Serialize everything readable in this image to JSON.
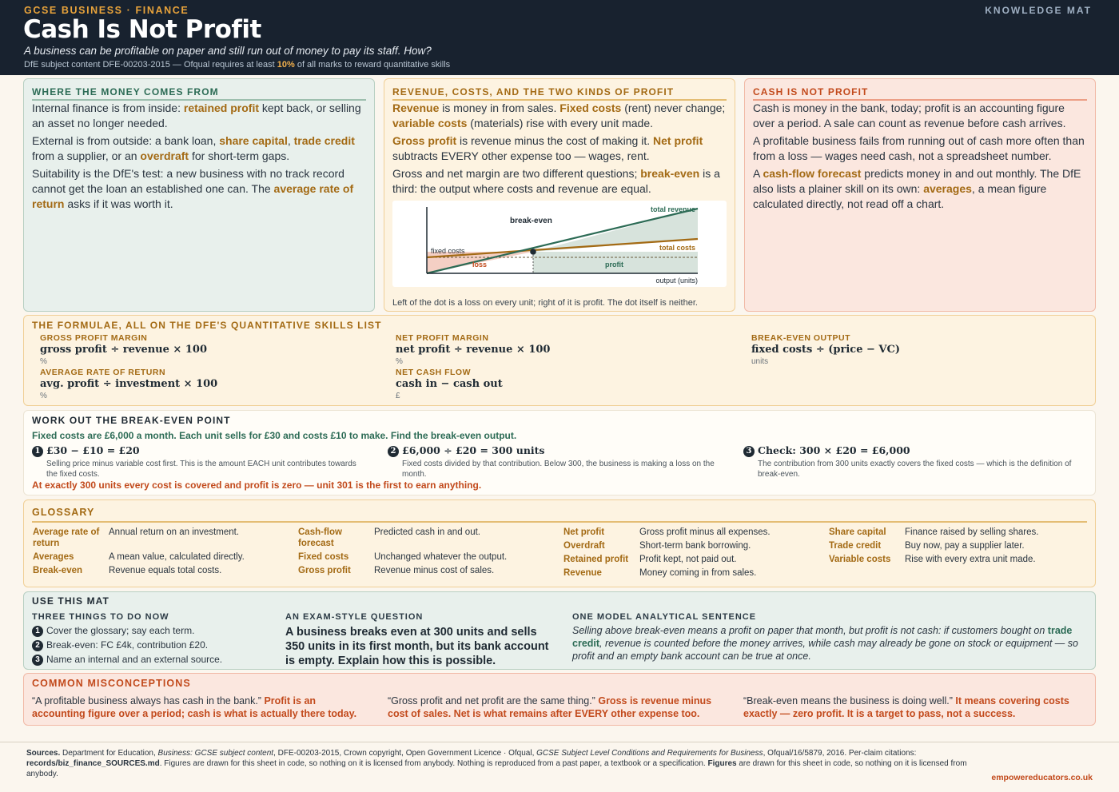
{
  "header": {
    "eyebrow": "GCSE BUSINESS · FINANCE",
    "tag": "KNOWLEDGE MAT",
    "title": "Cash Is Not Profit",
    "subtitle": "A business can be profitable on paper and still run out of money to pay its staff. How?",
    "dfe_pre": "DfE subject content DFE-00203-2015 — Ofqual requires at least ",
    "dfe_pct": "10%",
    "dfe_post": " of all marks to reward quantitative skills"
  },
  "money": {
    "heading": "WHERE THE MONEY COMES FROM",
    "p1_a": "Internal finance is from inside: ",
    "p1_k1": "retained profit",
    "p1_b": " kept back, or selling an asset no longer needed.",
    "p2_a": "External is from outside: a bank loan, ",
    "p2_k1": "share capital",
    "p2_b": ", ",
    "p2_k2": "trade credit",
    "p2_c": " from a supplier, or an ",
    "p2_k3": "overdraft",
    "p2_d": " for short-term gaps.",
    "p3_a": "Suitability is the DfE's test: a new business with no track record cannot get the loan an established one can. The ",
    "p3_k1": "average rate of return",
    "p3_b": " asks if it was worth it."
  },
  "revenue": {
    "heading": "REVENUE, COSTS, AND THE TWO KINDS OF PROFIT",
    "p1_k1": "Revenue",
    "p1_a": " is money in from sales. ",
    "p1_k2": "Fixed costs",
    "p1_b": " (rent) never change; ",
    "p1_k3": "variable costs",
    "p1_c": " (materials) rise with every unit made.",
    "p2_k1": "Gross profit",
    "p2_a": " is revenue minus the cost of making it. ",
    "p2_k2": "Net profit",
    "p2_b": " subtracts EVERY other expense too — wages, rent.",
    "p3_a": "Gross and net margin are two different questions; ",
    "p3_k1": "break-even",
    "p3_b": " is a third: the output where costs and revenue are equal.",
    "caption": "Left of the dot is a loss on every unit; right of it is profit. The dot itself is neither."
  },
  "chart": {
    "breakeven_label": "break-even",
    "total_revenue": "total revenue",
    "total_costs": "total costs",
    "fixed_costs": "fixed costs",
    "loss": "loss",
    "profit": "profit",
    "xlabel": "output (units)",
    "colors": {
      "revenue": "#2c6b55",
      "costs": "#a36a14",
      "loss": "#f4cfc4",
      "profit": "#d7e3dc"
    }
  },
  "chart_data": {
    "type": "line",
    "xlabel": "output (units)",
    "x": [
      0,
      1,
      2
    ],
    "series": [
      {
        "name": "total revenue",
        "values": [
          0,
          1,
          2
        ]
      },
      {
        "name": "total costs",
        "values": [
          0.5,
          1,
          1.5
        ]
      },
      {
        "name": "fixed costs",
        "values": [
          0.5,
          0.5,
          0.5
        ]
      }
    ],
    "annotations": [
      "break-even",
      "loss",
      "profit"
    ]
  },
  "cash": {
    "heading": "CASH IS NOT PROFIT",
    "p1": "Cash is money in the bank, today; profit is an accounting figure over a period. A sale can count as revenue before cash arrives.",
    "p2": "A profitable business fails from running out of cash more often than from a loss — wages need cash, not a spreadsheet number.",
    "p3_a": "A ",
    "p3_k1": "cash-flow forecast",
    "p3_b": " predicts money in and out monthly. The DfE also lists a plainer skill on its own: ",
    "p3_k2": "averages",
    "p3_c": ", a mean figure calculated directly, not read off a chart."
  },
  "formulae": {
    "heading": "THE FORMULAE, ALL ON THE DFE'S QUANTITATIVE SKILLS LIST",
    "items": [
      {
        "label": "GROSS PROFIT MARGIN",
        "formula": "gross profit ÷ revenue × 100",
        "unit": "%"
      },
      {
        "label": "NET PROFIT MARGIN",
        "formula": "net profit ÷ revenue × 100",
        "unit": "%"
      },
      {
        "label": "BREAK-EVEN OUTPUT",
        "formula": "fixed costs ÷ (price − VC)",
        "unit": "units"
      },
      {
        "label": "AVERAGE RATE OF RETURN",
        "formula": "avg. profit ÷ investment × 100",
        "unit": "%"
      },
      {
        "label": "NET CASH FLOW",
        "formula": "cash in − cash out",
        "unit": "£"
      }
    ]
  },
  "breakeven": {
    "heading": "WORK OUT THE BREAK-EVEN POINT",
    "question": "Fixed costs are £6,000 a month. Each unit sells for £30 and costs £10 to make. Find the break-even output.",
    "steps": [
      {
        "n": "1",
        "head": "£30 − £10 = £20",
        "desc": "Selling price minus variable cost first. This is the amount EACH unit contributes towards the fixed costs."
      },
      {
        "n": "2",
        "head": "£6,000 ÷ £20 = 300 units",
        "desc": "Fixed costs divided by that contribution. Below 300, the business is making a loss on the month."
      },
      {
        "n": "3",
        "head": "Check: 300 × £20 = £6,000",
        "desc": "The contribution from 300 units exactly covers the fixed costs — which is the definition of break-even."
      }
    ],
    "conclusion": "At exactly 300 units every cost is covered and profit is zero — unit 301 is the first to earn anything."
  },
  "glossary": {
    "heading": "GLOSSARY",
    "cols": [
      [
        {
          "term": "Average rate of return",
          "def": "Annual return on an investment."
        },
        {
          "term": "Averages",
          "def": "A mean value, calculated directly."
        },
        {
          "term": "Break-even",
          "def": "Revenue equals total costs."
        }
      ],
      [
        {
          "term": "Cash-flow forecast",
          "def": "Predicted cash in and out."
        },
        {
          "term": "Fixed costs",
          "def": "Unchanged whatever the output."
        },
        {
          "term": "Gross profit",
          "def": "Revenue minus cost of sales."
        }
      ],
      [
        {
          "term": "Net profit",
          "def": "Gross profit minus all expenses."
        },
        {
          "term": "Overdraft",
          "def": "Short-term bank borrowing."
        },
        {
          "term": "Retained profit",
          "def": "Profit kept, not paid out."
        },
        {
          "term": "Revenue",
          "def": "Money coming in from sales."
        }
      ],
      [
        {
          "term": "Share capital",
          "def": "Finance raised by selling shares."
        },
        {
          "term": "Trade credit",
          "def": "Buy now, pay a supplier later."
        },
        {
          "term": "Variable costs",
          "def": "Rise with every extra unit made."
        }
      ]
    ]
  },
  "use": {
    "heading": "USE THIS MAT",
    "todo_heading": "THREE THINGS TO DO NOW",
    "todo": [
      {
        "n": "1",
        "text": "Cover the glossary; say each term."
      },
      {
        "n": "2",
        "text": "Break-even: FC £4k, contribution £20."
      },
      {
        "n": "3",
        "text": "Name an internal and an external source."
      }
    ],
    "exam_heading": "AN EXAM-STYLE QUESTION",
    "exam": "A business breaks even at 300 units and sells 350 units in its first month, but its bank account is empty. Explain how this is possible.",
    "model_heading": "ONE MODEL ANALYTICAL SENTENCE",
    "model_a": "Selling above break-even means a profit on paper that month, but profit is not cash: if customers bought on ",
    "model_k": "trade credit",
    "model_b": ", revenue is counted before the money arrives, while cash may already be gone on stock or equipment — so profit and an empty bank account can be true at once."
  },
  "misconceptions": {
    "heading": "COMMON MISCONCEPTIONS",
    "items": [
      {
        "quote": "“A profitable business always has cash in the bank.”",
        "fix": "Profit is an accounting figure over a period; cash is what is actually there today."
      },
      {
        "quote": "“Gross profit and net profit are the same thing.”",
        "fix": "Gross is revenue minus cost of sales. Net is what remains after EVERY other expense too."
      },
      {
        "quote": "“Break-even means the business is doing well.”",
        "fix": "It means covering costs exactly — zero profit. It is a target to pass, not a success."
      }
    ]
  },
  "footer": {
    "sources_label": "Sources.",
    "s1": " Department for Education, ",
    "s1_i": "Business: GCSE subject content",
    "s2": ", DFE-00203-2015, Crown copyright, Open Government Licence · Ofqual, ",
    "s2_i": "GCSE Subject Level Conditions and Requirements for Business",
    "s3": ", Ofqual/16/5879, 2016. Per-claim citations: ",
    "file": "records/biz_finance_SOURCES.md",
    "s4": ". Figures are drawn for this sheet in code, so nothing on it is licensed from anybody. Nothing is reproduced from a past paper, a textbook or a specification. ",
    "fig": "Figures",
    "s5": " are drawn for this sheet in code, so nothing on it is licensed from anybody.",
    "site": "empowereducators.co.uk"
  }
}
